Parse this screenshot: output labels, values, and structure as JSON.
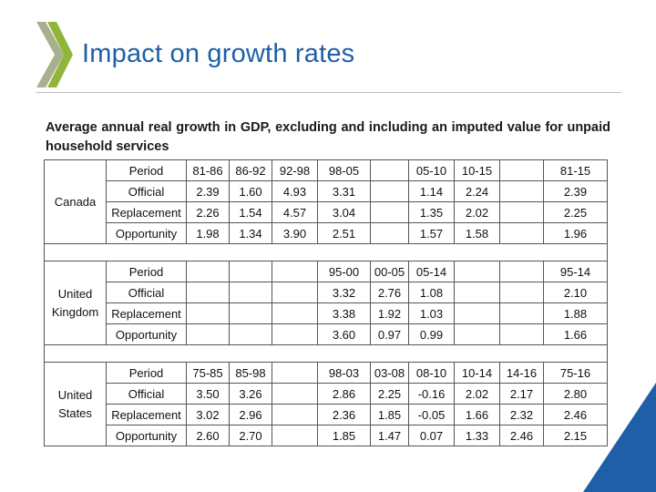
{
  "header": {
    "title": "Impact on growth rates",
    "logo_colors": [
      "#8fb53a",
      "#a8b08e"
    ],
    "accent_color": "#1f5fa8",
    "corner_color": "#1f5fa8"
  },
  "table": {
    "caption": "Average annual real growth in GDP, excluding and including an imputed value for unpaid household services",
    "sections": [
      {
        "country": "Canada",
        "rows": [
          {
            "label": "Period",
            "values": [
              "81-86",
              "86-92",
              "92-98",
              "98-05",
              "",
              "05-10",
              "10-15",
              "",
              "81-15"
            ]
          },
          {
            "label": "Official",
            "values": [
              "2.39",
              "1.60",
              "4.93",
              "3.31",
              "",
              "1.14",
              "2.24",
              "",
              "2.39"
            ]
          },
          {
            "label": "Replacement",
            "values": [
              "2.26",
              "1.54",
              "4.57",
              "3.04",
              "",
              "1.35",
              "2.02",
              "",
              "2.25"
            ]
          },
          {
            "label": "Opportunity",
            "values": [
              "1.98",
              "1.34",
              "3.90",
              "2.51",
              "",
              "1.57",
              "1.58",
              "",
              "1.96"
            ]
          }
        ]
      },
      {
        "country": "United Kingdom",
        "rows": [
          {
            "label": "Period",
            "values": [
              "",
              "",
              "",
              "95-00",
              "00-05",
              "05-14",
              "",
              "",
              "95-14"
            ]
          },
          {
            "label": "Official",
            "values": [
              "",
              "",
              "",
              "3.32",
              "2.76",
              "1.08",
              "",
              "",
              "2.10"
            ]
          },
          {
            "label": "Replacement",
            "values": [
              "",
              "",
              "",
              "3.38",
              "1.92",
              "1.03",
              "",
              "",
              "1.88"
            ]
          },
          {
            "label": "Opportunity",
            "values": [
              "",
              "",
              "",
              "3.60",
              "0.97",
              "0.99",
              "",
              "",
              "1.66"
            ]
          }
        ]
      },
      {
        "country": "United States",
        "rows": [
          {
            "label": "Period",
            "values": [
              "75-85",
              "85-98",
              "",
              "98-03",
              "03-08",
              "08-10",
              "10-14",
              "14-16",
              "75-16"
            ]
          },
          {
            "label": "Official",
            "values": [
              "3.50",
              "3.26",
              "",
              "2.86",
              "2.25",
              "-0.16",
              "2.02",
              "2.17",
              "2.80"
            ]
          },
          {
            "label": "Replacement",
            "values": [
              "3.02",
              "2.96",
              "",
              "2.36",
              "1.85",
              "-0.05",
              "1.66",
              "2.32",
              "2.46"
            ]
          },
          {
            "label": "Opportunity",
            "values": [
              "2.60",
              "2.70",
              "",
              "1.85",
              "1.47",
              "0.07",
              "1.33",
              "2.46",
              "2.15"
            ]
          }
        ]
      }
    ]
  }
}
